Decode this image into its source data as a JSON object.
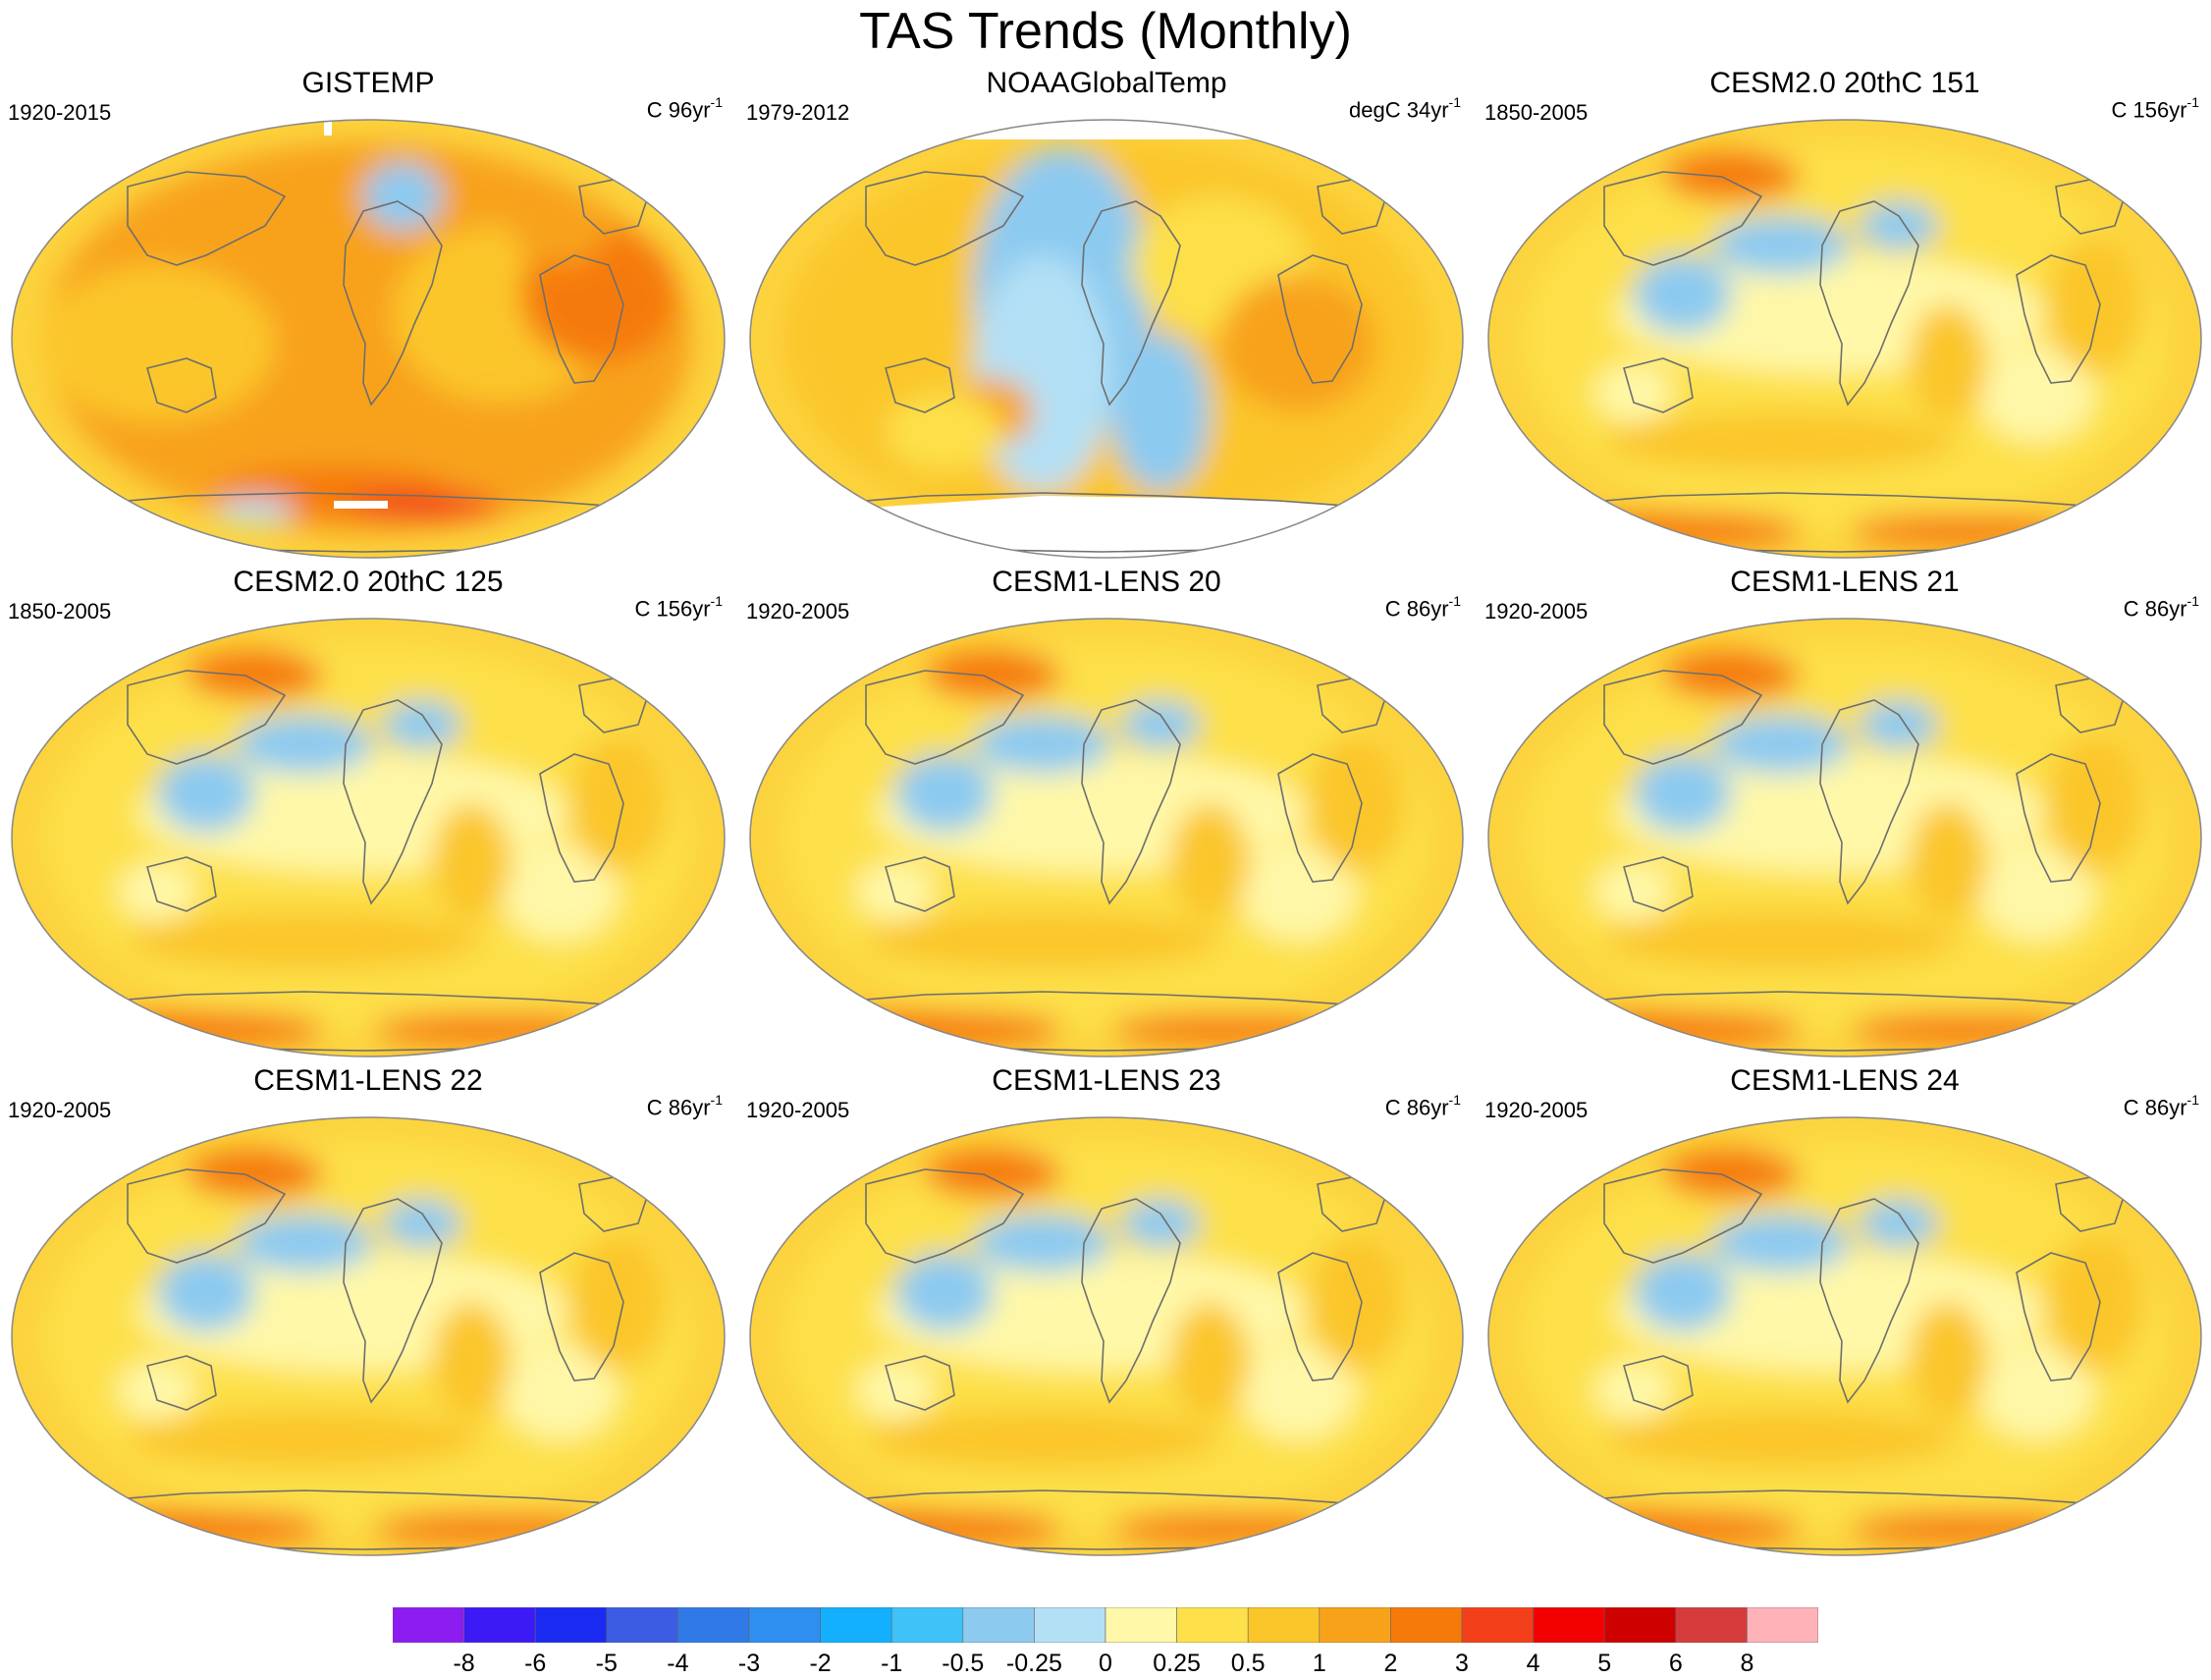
{
  "title": "TAS Trends (Monthly)",
  "panels": [
    {
      "title": "GISTEMP",
      "period": "1920-2015",
      "units_prefix": "C 96yr",
      "units_exp": "-1",
      "style": "gistemp"
    },
    {
      "title": "NOAAGlobalTemp",
      "period": "1979-2012",
      "units_prefix": "degC 34yr",
      "units_exp": "-1",
      "style": "noaa"
    },
    {
      "title": "CESM2.0 20thC 151",
      "period": "1850-2005",
      "units_prefix": "C 156yr",
      "units_exp": "-1",
      "style": "model"
    },
    {
      "title": "CESM2.0 20thC 125",
      "period": "1850-2005",
      "units_prefix": "C 156yr",
      "units_exp": "-1",
      "style": "model"
    },
    {
      "title": "CESM1-LENS 20",
      "period": "1920-2005",
      "units_prefix": "C 86yr",
      "units_exp": "-1",
      "style": "model"
    },
    {
      "title": "CESM1-LENS 21",
      "period": "1920-2005",
      "units_prefix": "C 86yr",
      "units_exp": "-1",
      "style": "model"
    },
    {
      "title": "CESM1-LENS 22",
      "period": "1920-2005",
      "units_prefix": "C 86yr",
      "units_exp": "-1",
      "style": "model"
    },
    {
      "title": "CESM1-LENS 23",
      "period": "1920-2005",
      "units_prefix": "C 86yr",
      "units_exp": "-1",
      "style": "model"
    },
    {
      "title": "CESM1-LENS 24",
      "period": "1920-2005",
      "units_prefix": "C 86yr",
      "units_exp": "-1",
      "style": "model"
    }
  ],
  "colorbar": {
    "labels": [
      "-8",
      "-6",
      "-5",
      "-4",
      "-3",
      "-2",
      "-1",
      "-0.5",
      "-0.25",
      "0",
      "0.25",
      "0.5",
      "1",
      "2",
      "3",
      "4",
      "5",
      "6",
      "8"
    ],
    "colors": [
      "#8c1cf0",
      "#3c1af5",
      "#1a2af0",
      "#3b5ce3",
      "#2f7ae6",
      "#2e8ff0",
      "#12b0ff",
      "#3fc2f7",
      "#8ccaf0",
      "#b3e0f5",
      "#fff8a8",
      "#fde04a",
      "#fbc62a",
      "#f8a21a",
      "#f57a0a",
      "#f3401a",
      "#f30000",
      "#cf0000",
      "#d63b3b",
      "#ffb3b8"
    ]
  },
  "palette": {
    "ocean_base": "#fcd33e",
    "land_line": "#6e6e6e",
    "missing": "#ffffff"
  }
}
